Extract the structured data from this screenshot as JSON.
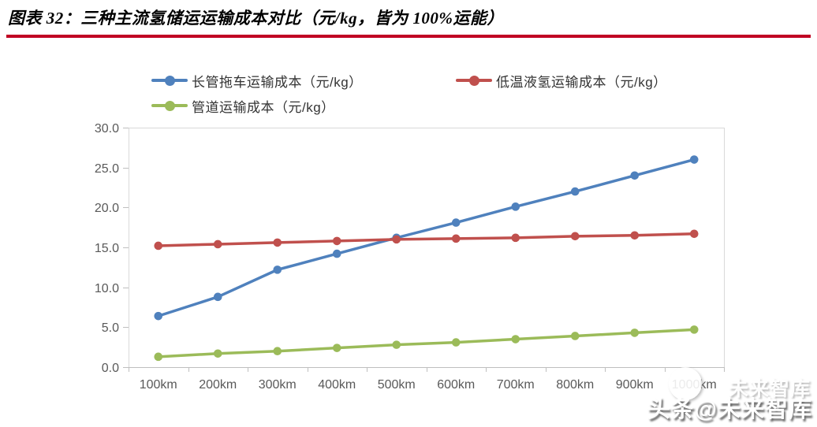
{
  "header": {
    "title": "图表 32：三种主流氢储运运输成本对比（元/kg，皆为 100%运能）"
  },
  "colors": {
    "divider": "#C00023",
    "axis_text": "#595959",
    "plot_border": "#D9D9D9",
    "axis_line": "#BFBFBF",
    "legend_text": "#333333"
  },
  "chart_data": {
    "type": "line",
    "categories": [
      "100km",
      "200km",
      "300km",
      "400km",
      "500km",
      "600km",
      "700km",
      "800km",
      "900km",
      "1000km"
    ],
    "series": [
      {
        "name": "长管拖车运输成本（元/kg）",
        "color": "#4F81BD",
        "values": [
          6.4,
          8.8,
          12.2,
          14.2,
          16.2,
          18.1,
          20.1,
          22.0,
          24.0,
          26.0
        ]
      },
      {
        "name": "低温液氢运输成本（元/kg）",
        "color": "#C0504D",
        "values": [
          15.2,
          15.4,
          15.6,
          15.8,
          16.0,
          16.1,
          16.2,
          16.4,
          16.5,
          16.7
        ]
      },
      {
        "name": "管道运输成本（元/kg）",
        "color": "#9BBB59",
        "values": [
          1.3,
          1.7,
          2.0,
          2.4,
          2.8,
          3.1,
          3.5,
          3.9,
          4.3,
          4.7
        ]
      }
    ],
    "title": "",
    "xlabel": "",
    "ylabel": "",
    "ylim": [
      0,
      30
    ],
    "ytick_step": 5,
    "ytick_labels": [
      "30.0",
      "25.0",
      "20.0",
      "15.0",
      "10.0",
      "5.0",
      "0.0"
    ],
    "grid": false,
    "legend_position": "top"
  },
  "watermark": {
    "text": "头条@未来智库",
    "ghost_text": "未来智库"
  }
}
